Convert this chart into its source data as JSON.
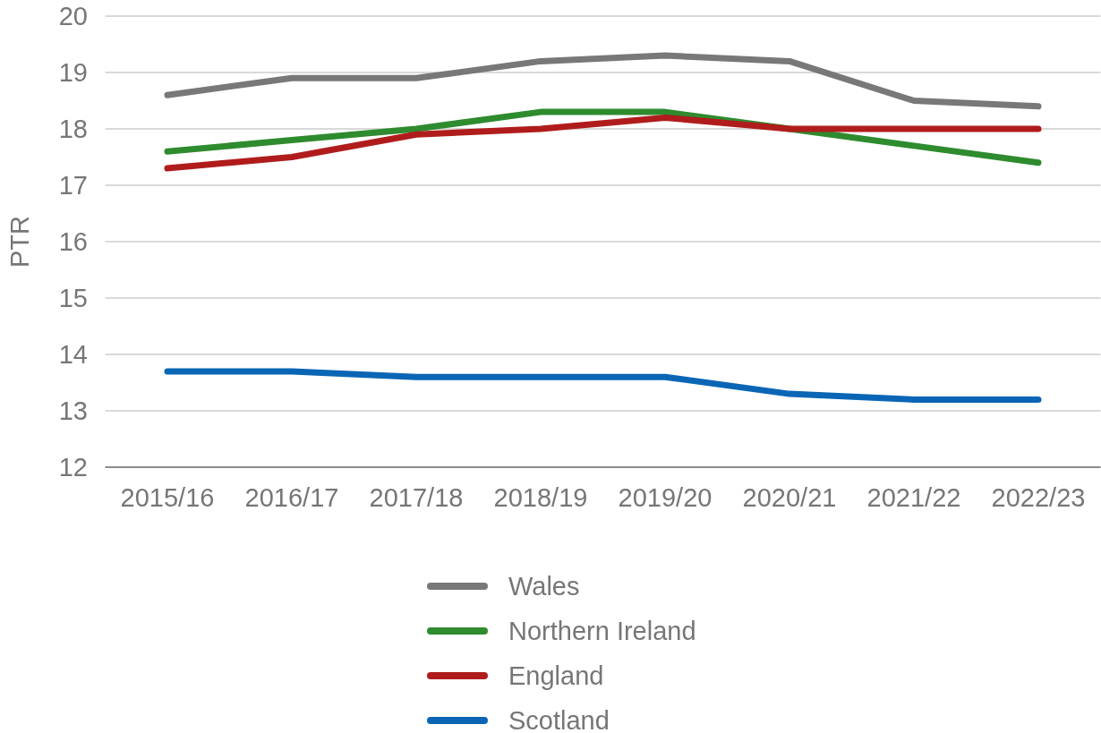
{
  "chart_data": {
    "type": "line",
    "ylabel": "PTR",
    "categories": [
      "2015/16",
      "2016/17",
      "2017/18",
      "2018/19",
      "2019/20",
      "2020/21",
      "2021/22",
      "2022/23"
    ],
    "series": [
      {
        "name": "Wales",
        "color": "#787878",
        "values": [
          18.6,
          18.9,
          18.9,
          19.2,
          19.3,
          19.2,
          18.5,
          18.4
        ]
      },
      {
        "name": "Northern Ireland",
        "color": "#2e8b2e",
        "values": [
          17.6,
          17.8,
          18.0,
          18.3,
          18.3,
          18.0,
          17.7,
          17.4
        ]
      },
      {
        "name": "England",
        "color": "#b01c1c",
        "values": [
          17.3,
          17.5,
          17.9,
          18.0,
          18.2,
          18.0,
          18.0,
          18.0
        ]
      },
      {
        "name": "Scotland",
        "color": "#0a66b5",
        "values": [
          13.7,
          13.7,
          13.6,
          13.6,
          13.6,
          13.3,
          13.2,
          13.2
        ]
      }
    ],
    "ylim": [
      12,
      20
    ],
    "yticks": [
      12,
      13,
      14,
      15,
      16,
      17,
      18,
      19,
      20
    ],
    "grid": "y",
    "legend": "bottom",
    "marker": "none",
    "line_style": "solid"
  }
}
